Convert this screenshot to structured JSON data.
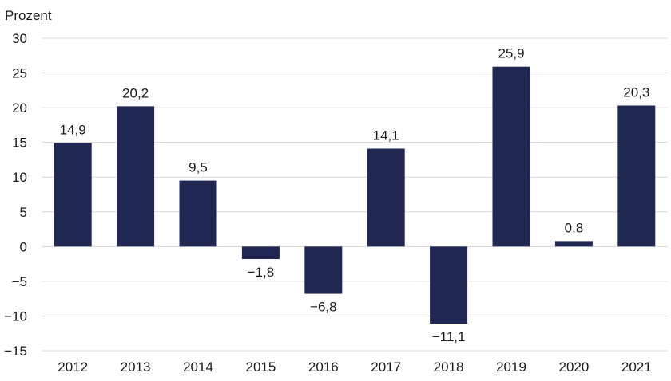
{
  "chart_data": {
    "type": "bar",
    "ylabel": "Prozent",
    "categories": [
      "2012",
      "2013",
      "2014",
      "2015",
      "2016",
      "2017",
      "2018",
      "2019",
      "2020",
      "2021"
    ],
    "values": [
      14.9,
      20.2,
      9.5,
      -1.8,
      -6.8,
      14.1,
      -11.1,
      25.9,
      0.8,
      20.3
    ],
    "value_labels": [
      "14,9",
      "20,2",
      "9,5",
      "−1,8",
      "−6,8",
      "14,1",
      "−11,1",
      "25,9",
      "0,8",
      "20,3"
    ],
    "ylim": [
      -15,
      30
    ],
    "yticks": [
      30,
      25,
      20,
      15,
      10,
      5,
      0,
      -5,
      -10,
      -15
    ],
    "ytick_labels": [
      "30",
      "25",
      "20",
      "15",
      "10",
      "5",
      "0",
      "−5",
      "−10",
      "−15"
    ],
    "grid": true,
    "bar_color": "#1f2752",
    "grid_color": "#d9d9d9"
  }
}
